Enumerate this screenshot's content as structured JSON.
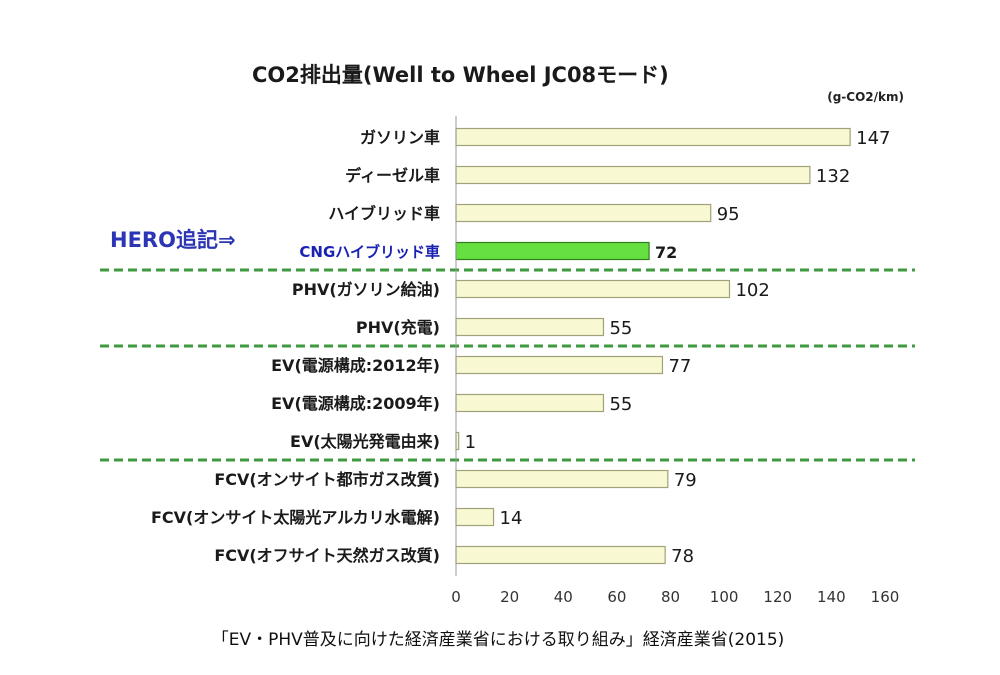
{
  "chart_data": {
    "type": "bar",
    "orientation": "horizontal",
    "title": "CO2排出量(Well to Wheel JC08モード)",
    "unit": "(g-CO2/km)",
    "categories": [
      "ガソリン車",
      "ディーゼル車",
      "ハイブリッド車",
      "CNGハイブリッド車",
      "PHV(ガソリン給油)",
      "PHV(充電)",
      "EV(電源構成:2012年)",
      "EV(電源構成:2009年)",
      "EV(太陽光発電由来)",
      "FCV(オンサイト都市ガス改質)",
      "FCV(オンサイト太陽光アルカリ水電解)",
      "FCV(オフサイト天然ガス改質)"
    ],
    "values": [
      147,
      132,
      95,
      72,
      102,
      55,
      77,
      55,
      1,
      79,
      14,
      78
    ],
    "value_labels": [
      "147",
      "132",
      "95",
      "72",
      "102",
      "55",
      "77",
      "55",
      "1",
      "79",
      "14",
      "78"
    ],
    "highlight_index": 3,
    "group_dividers_after": [
      3,
      5,
      8
    ],
    "xlim": [
      0,
      160
    ],
    "xticks": [
      "0",
      "20",
      "40",
      "60",
      "80",
      "100",
      "120",
      "140",
      "160"
    ],
    "grid": false,
    "colors": {
      "bar_fill": "#f8f8d2",
      "bar_stroke": "#a2a279",
      "highlight_fill": "#66e040",
      "highlight_stroke": "#2f7d1e",
      "divider": "#3f9a3f",
      "annotation": "#2c36b4"
    }
  },
  "annotation": "HERO追記⇒",
  "source": "「EV・PHV普及に向けた経済産業省における取り組み」経済産業省(2015)"
}
